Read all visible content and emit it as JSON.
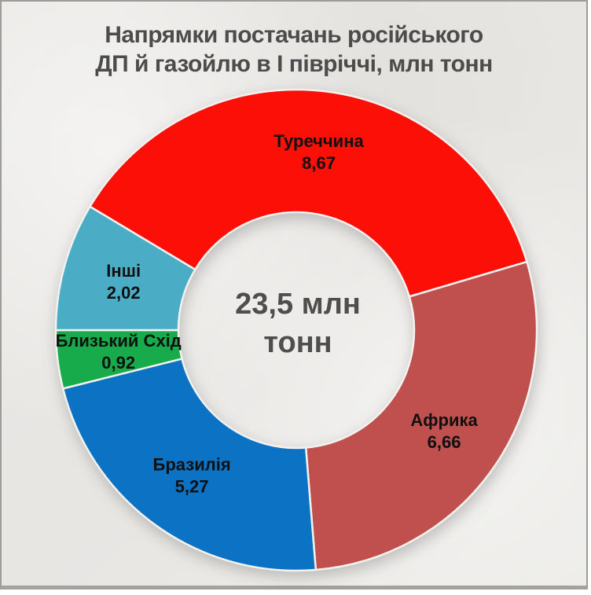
{
  "title": {
    "line1": "Напрямки постачань російського",
    "line2": "ДП й газойлю в І півріччі, млн тонн"
  },
  "center": {
    "line1": "23,5 млн",
    "line2": "тонн"
  },
  "chart_data": {
    "type": "pie",
    "subtype": "donut",
    "title": "Напрямки постачань російського ДП й газойлю в І півріччі, млн тонн",
    "units": "млн тонн",
    "center_label": "23,5 млн тонн",
    "total_value_shown": "23,5",
    "direction": "clockwise",
    "start_angle_deg": 300.9,
    "legend_position": "labels-inside-slices",
    "slices": [
      {
        "label": "Туреччина",
        "value": 8.67,
        "display_value": "8,67",
        "color": "#fb0f06"
      },
      {
        "label": "Африка",
        "value": 6.66,
        "display_value": "6,66",
        "color": "#c0504d"
      },
      {
        "label": "Бразилія",
        "value": 5.27,
        "display_value": "5,27",
        "color": "#0b72c4"
      },
      {
        "label": "Близький Схід",
        "value": 0.92,
        "display_value": "0,92",
        "color": "#18ab4b"
      },
      {
        "label": "Інші",
        "value": 2.02,
        "display_value": "2,02",
        "color": "#4bacc6"
      }
    ]
  },
  "style_colors": {
    "background_paper": "#e9e7e4",
    "frame_border": "#9c9c9a",
    "title_text": "#4c4c4c",
    "slice_label_text": "#101010",
    "center_text": "#4e4e4e",
    "slice_separator": "#f4f2ef"
  }
}
